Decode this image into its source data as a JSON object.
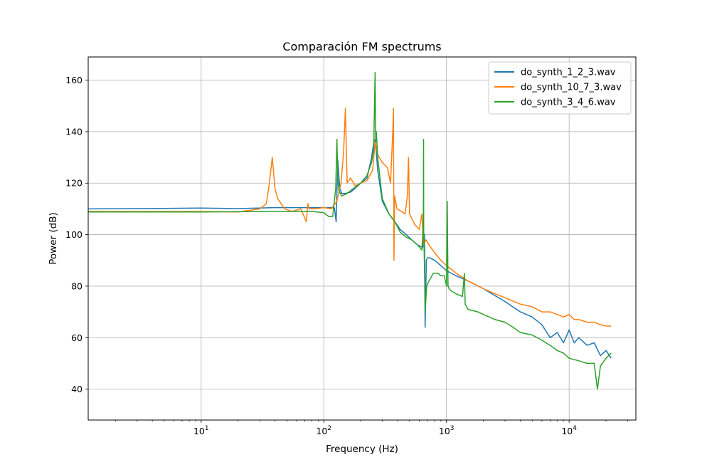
{
  "chart_data": {
    "type": "line",
    "title": "Comparación FM spectrums",
    "xlabel": "Frequency (Hz)",
    "ylabel": "Power (dB)",
    "xscale": "log",
    "xlim": [
      1.2,
      35000
    ],
    "ylim": [
      28,
      169
    ],
    "grid": true,
    "legend": "top-right",
    "x_ticks": [
      {
        "value": 10,
        "base": "10",
        "exp": "1"
      },
      {
        "value": 100,
        "base": "10",
        "exp": "2"
      },
      {
        "value": 1000,
        "base": "10",
        "exp": "3"
      },
      {
        "value": 10000,
        "base": "10",
        "exp": "4"
      }
    ],
    "y_ticks": [
      {
        "value": 40,
        "label": "40"
      },
      {
        "value": 60,
        "label": "60"
      },
      {
        "value": 80,
        "label": "80"
      },
      {
        "value": 100,
        "label": "100"
      },
      {
        "value": 120,
        "label": "120"
      },
      {
        "value": 140,
        "label": "140"
      },
      {
        "value": 160,
        "label": "160"
      }
    ],
    "series": [
      {
        "name": "do_synth_1_2_3.wav",
        "color": "#1f77b4",
        "x": [
          1.2,
          5,
          10,
          20,
          40,
          80,
          110,
          122,
          126,
          130,
          135,
          140,
          150,
          165,
          180,
          200,
          225,
          245,
          258,
          265,
          275,
          300,
          340,
          380,
          420,
          470,
          520,
          580,
          640,
          662,
          670,
          685,
          700,
          730,
          800,
          900,
          1000,
          1200,
          1500,
          2000,
          3000,
          4000,
          5000,
          6000,
          7000,
          8000,
          9000,
          10000,
          11000,
          12000,
          14000,
          16000,
          18000,
          20000,
          22000
        ],
        "y": [
          110,
          110.2,
          110.3,
          110.1,
          110.5,
          110.5,
          110.5,
          110.4,
          105,
          129,
          118,
          116,
          116,
          116.5,
          118,
          120,
          122,
          130,
          137,
          135,
          125,
          113,
          108,
          105,
          102,
          100,
          98,
          96,
          95,
          100,
          64,
          90,
          91,
          91,
          90,
          88,
          86,
          84,
          82,
          79,
          74,
          70,
          68,
          65,
          60,
          62,
          58,
          63,
          58,
          60,
          57,
          58,
          53,
          55,
          52
        ]
      },
      {
        "name": "do_synth_10_7_3.wav",
        "color": "#ff7f0e",
        "x": [
          1.2,
          5,
          10,
          20,
          30,
          34,
          36,
          38,
          40,
          42,
          48,
          55,
          65,
          72,
          74,
          76,
          85,
          100,
          115,
          128,
          138,
          145,
          150,
          155,
          165,
          180,
          200,
          225,
          250,
          262,
          275,
          300,
          330,
          350,
          365,
          370,
          373,
          378,
          395,
          430,
          460,
          480,
          490,
          500,
          550,
          600,
          630,
          650,
          680,
          720,
          800,
          900,
          1000,
          1200,
          1500,
          2000,
          2500,
          3000,
          4000,
          5000,
          6000,
          7000,
          8000,
          9000,
          10000,
          11000,
          12000,
          14000,
          16000,
          18000,
          20000,
          22000
        ],
        "y": [
          109,
          109,
          109,
          108.8,
          110,
          112,
          120,
          130,
          118,
          114,
          110,
          109,
          110,
          105,
          112,
          110,
          110,
          110.5,
          110,
          113,
          120,
          132,
          149,
          120,
          122,
          119,
          120,
          121,
          125,
          136,
          131,
          128,
          126,
          120,
          140,
          149,
          90,
          115,
          110,
          109,
          108,
          115,
          130,
          108,
          104,
          102,
          108,
          96,
          98,
          96,
          93,
          90,
          88,
          85,
          82,
          79,
          77,
          75.5,
          73,
          72,
          70,
          70,
          69,
          68,
          69,
          67,
          67,
          66,
          66,
          65,
          64.5,
          64.5
        ]
      },
      {
        "name": "do_synth_3_4_6.wav",
        "color": "#2ca02c",
        "x": [
          1.2,
          5,
          10,
          20,
          40,
          80,
          100,
          110,
          118,
          125,
          128,
          130,
          133,
          140,
          155,
          175,
          200,
          225,
          245,
          255,
          260,
          262,
          265,
          268,
          275,
          300,
          340,
          380,
          420,
          470,
          520,
          580,
          630,
          648,
          650,
          652,
          660,
          672,
          680,
          690,
          720,
          780,
          850,
          900,
          960,
          1000,
          1015,
          1030,
          1050,
          1100,
          1200,
          1350,
          1400,
          1420,
          1500,
          1800,
          2000,
          2500,
          3000,
          3500,
          4000,
          5000,
          6000,
          7000,
          8000,
          9000,
          10000,
          12000,
          14000,
          16000,
          17000,
          18000,
          20000,
          22000
        ],
        "y": [
          108.8,
          108.8,
          108.8,
          108.9,
          109,
          109,
          108.5,
          107,
          107,
          118,
          137,
          122,
          117,
          115,
          116,
          118,
          120,
          123,
          128,
          133,
          155,
          163,
          136,
          140,
          130,
          114,
          108,
          105,
          101,
          99,
          98,
          96,
          94,
          104,
          137,
          102,
          90,
          70,
          75,
          80,
          82,
          85,
          85,
          84,
          84,
          80,
          113,
          80,
          79,
          78,
          77,
          76,
          85,
          73,
          71,
          70,
          69,
          67,
          66,
          64,
          62,
          61,
          59,
          57,
          55,
          54,
          52,
          51,
          50,
          50,
          40,
          49,
          52,
          54
        ]
      }
    ]
  }
}
